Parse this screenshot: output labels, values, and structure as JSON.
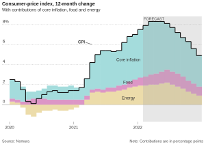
{
  "chart_data": {
    "type": "stacked-step-area",
    "title": "Consumer-price index, 12-month change",
    "subtitle": "With contributions of core inflation, food and energy",
    "categories": [
      "2020",
      null,
      null,
      null,
      null,
      null,
      null,
      null,
      null,
      null,
      null,
      null,
      "2021",
      null,
      null,
      null,
      null,
      null,
      null,
      null,
      null,
      null,
      null,
      null,
      "2022",
      null,
      null,
      null,
      null,
      null,
      null,
      null,
      null,
      null,
      null,
      null
    ],
    "series": [
      {
        "name": "Energy",
        "color": "#ecdcaa",
        "values": [
          0.3,
          0.2,
          -0.3,
          -1.0,
          -1.2,
          -0.8,
          -0.6,
          -0.6,
          -0.5,
          -0.6,
          -0.6,
          -0.5,
          -0.3,
          0.0,
          0.5,
          1.2,
          1.3,
          1.2,
          1.3,
          1.3,
          1.4,
          1.5,
          1.7,
          1.8,
          1.9,
          1.9,
          2.0,
          2.0,
          2.1,
          2.2,
          2.0,
          1.8,
          1.6,
          1.3,
          1.1,
          0.9
        ]
      },
      {
        "name": "Food",
        "color": "#dc96c6",
        "values": [
          0.3,
          0.3,
          0.3,
          0.5,
          0.6,
          0.6,
          0.6,
          0.5,
          0.5,
          0.5,
          0.5,
          0.5,
          0.5,
          0.5,
          0.4,
          0.3,
          0.3,
          0.3,
          0.4,
          0.4,
          0.5,
          0.5,
          0.6,
          0.7,
          0.8,
          0.9,
          1.0,
          1.1,
          1.2,
          1.3,
          1.3,
          1.3,
          1.2,
          1.1,
          1.0,
          0.9
        ]
      },
      {
        "name": "Core inflation",
        "color": "#a4dcdc",
        "values": [
          1.9,
          1.8,
          1.5,
          0.8,
          0.7,
          0.8,
          1.0,
          1.4,
          1.4,
          1.3,
          1.3,
          1.4,
          1.2,
          1.2,
          1.7,
          2.7,
          3.4,
          3.9,
          3.7,
          3.6,
          3.5,
          4.2,
          4.5,
          4.5,
          4.8,
          5.1,
          5.3,
          5.2,
          5.0,
          4.6,
          4.4,
          4.1,
          3.9,
          3.9,
          3.5,
          3.1
        ]
      },
      {
        "name": "CPI",
        "color": "#111111",
        "type": "line",
        "values": [
          2.5,
          2.3,
          1.5,
          0.3,
          0.1,
          0.6,
          1.0,
          1.3,
          1.4,
          1.2,
          1.2,
          1.4,
          1.4,
          1.7,
          2.6,
          4.2,
          5.0,
          5.4,
          5.4,
          5.3,
          5.4,
          6.2,
          6.8,
          7.0,
          7.5,
          7.9,
          8.3,
          8.3,
          8.3,
          8.1,
          7.7,
          7.2,
          6.7,
          6.3,
          5.6,
          4.9
        ]
      }
    ],
    "forecast": {
      "label": "FORECAST",
      "from": 25
    },
    "ylim": [
      -1.7,
      8.4
    ],
    "yticks": [
      0,
      2,
      4,
      6,
      {
        "value": 8,
        "label": "8%"
      }
    ],
    "grid": true,
    "source": "Source: Nomura",
    "note": "Note: Contributions are in percentage points"
  }
}
